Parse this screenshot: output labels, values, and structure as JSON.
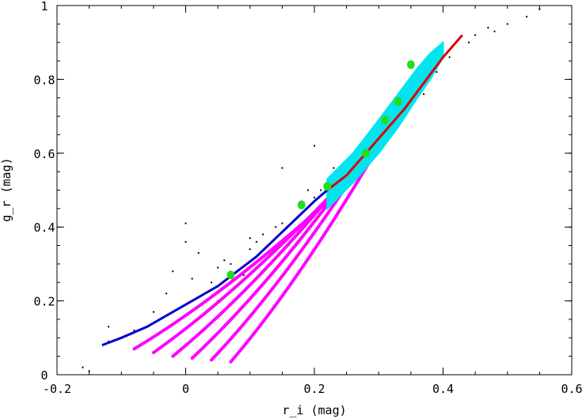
{
  "chart_data": {
    "type": "scatter",
    "title": "",
    "xlabel": "r_i (mag)",
    "ylabel": "g_r (mag)",
    "xlim": [
      -0.2,
      0.6
    ],
    "ylim": [
      0,
      1
    ],
    "x_ticks": [
      "-0.2",
      "0",
      "0.2",
      "0.4",
      "0.6"
    ],
    "y_ticks": [
      "0",
      "0.2",
      "0.4",
      "0.6",
      "0.8",
      "1"
    ],
    "x_tick_values": [
      -0.2,
      0,
      0.2,
      0.4,
      0.6
    ],
    "y_tick_values": [
      0,
      0.2,
      0.4,
      0.6,
      0.8,
      1
    ],
    "grid": false,
    "legend": "none",
    "colors": {
      "observed": "#000000",
      "blue_track": "#0000cc",
      "magenta_tracks": "#ff00ff",
      "cyan_band": "#00e5ee",
      "red_track": "#dd0000",
      "green_markers": "#22dd22"
    },
    "series": [
      {
        "kind": "points",
        "x": [
          -0.12,
          -0.16,
          -0.15,
          -0.12,
          -0.05,
          -0.02,
          0.0,
          0.02,
          0.03,
          0.05,
          0.06,
          0.08,
          0.1,
          0.12,
          0.13,
          0.15,
          0.16,
          0.18,
          0.2,
          0.22,
          0.25,
          0.27,
          0.3,
          0.33,
          0.36,
          0.38,
          0.4,
          0.42,
          0.45,
          0.48,
          0.5,
          0.53,
          0.55,
          -0.08,
          0.04,
          0.07,
          0.09,
          0.11,
          0.14,
          0.17,
          0.19,
          0.21,
          0.23,
          0.26,
          0.28,
          0.31,
          0.34,
          0.37,
          0.39,
          0.41,
          0.44,
          0.47,
          0.0,
          0.05,
          0.1,
          0.15,
          0.2,
          0.25,
          0.3,
          -0.03,
          0.01
        ],
        "y": [
          0.13,
          0.02,
          0.01,
          0.09,
          0.17,
          0.28,
          0.36,
          0.33,
          0.22,
          0.29,
          0.31,
          0.24,
          0.34,
          0.38,
          0.33,
          0.41,
          0.35,
          0.47,
          0.48,
          0.52,
          0.55,
          0.58,
          0.64,
          0.7,
          0.78,
          0.8,
          0.87,
          0.9,
          0.92,
          0.93,
          0.95,
          0.97,
          0.99,
          0.12,
          0.25,
          0.3,
          0.27,
          0.36,
          0.4,
          0.42,
          0.5,
          0.5,
          0.56,
          0.57,
          0.62,
          0.68,
          0.74,
          0.76,
          0.82,
          0.86,
          0.9,
          0.94,
          0.41,
          0.2,
          0.37,
          0.56,
          0.62,
          0.58,
          0.66,
          0.22,
          0.26
        ]
      },
      {
        "kind": "curve",
        "x": [
          -0.13,
          -0.1,
          -0.06,
          -0.02,
          0.02,
          0.05,
          0.08,
          0.11,
          0.14,
          0.17,
          0.2,
          0.22
        ],
        "y": [
          0.08,
          0.1,
          0.13,
          0.17,
          0.21,
          0.24,
          0.28,
          0.32,
          0.37,
          0.42,
          0.47,
          0.5
        ]
      },
      {
        "kind": "curve",
        "x": [
          0.22,
          0.25,
          0.28,
          0.31,
          0.34,
          0.37,
          0.4,
          0.42,
          0.43
        ],
        "y": [
          0.5,
          0.54,
          0.6,
          0.66,
          0.72,
          0.79,
          0.86,
          0.9,
          0.92
        ]
      },
      {
        "kind": "band",
        "x": [
          0.22,
          0.26,
          0.3,
          0.33,
          0.36,
          0.38,
          0.4
        ],
        "y_low": [
          0.45,
          0.52,
          0.6,
          0.67,
          0.75,
          0.8,
          0.86
        ],
        "y_high": [
          0.53,
          0.6,
          0.69,
          0.76,
          0.83,
          0.87,
          0.9
        ]
      },
      {
        "kind": "fan",
        "x_start": [
          -0.08,
          -0.05,
          -0.02,
          0.01,
          0.04,
          0.07
        ],
        "y_start": [
          0.07,
          0.06,
          0.05,
          0.045,
          0.04,
          0.035
        ],
        "x_end": [
          0.24,
          0.26,
          0.28,
          0.3,
          0.32,
          0.34
        ],
        "y_end": [
          0.5,
          0.55,
          0.6,
          0.65,
          0.7,
          0.74
        ]
      },
      {
        "kind": "markers",
        "x": [
          0.07,
          0.18,
          0.22,
          0.28,
          0.31,
          0.33,
          0.35
        ],
        "y": [
          0.27,
          0.46,
          0.51,
          0.6,
          0.69,
          0.74,
          0.84
        ]
      }
    ]
  }
}
